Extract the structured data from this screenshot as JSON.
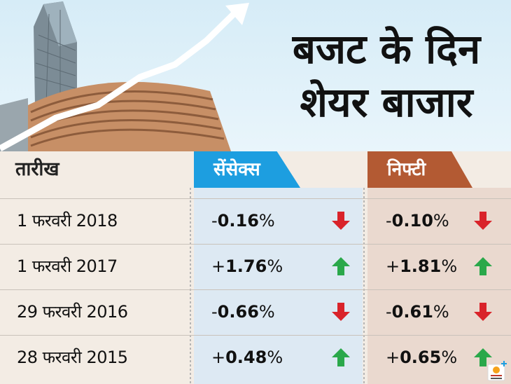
{
  "headline": {
    "line1": "बजट के दिन",
    "line2": "शेयर बाजार"
  },
  "table": {
    "date_header": "तारीख",
    "sensex_header": "सेंसेक्स",
    "nifty_header": "निफ्टी",
    "rows": [
      {
        "date": "1 फरवरी 2018",
        "sensex_sign": "-",
        "sensex_value": "0.16",
        "sensex_unit": "%",
        "sensex_direction": "down",
        "nifty_sign": "-",
        "nifty_value": "0.10",
        "nifty_unit": "%",
        "nifty_direction": "down"
      },
      {
        "date": "1 फरवरी 2017",
        "sensex_sign": "+",
        "sensex_value": "1.76",
        "sensex_unit": "%",
        "sensex_direction": "up",
        "nifty_sign": "+",
        "nifty_value": "1.81",
        "nifty_unit": "%",
        "nifty_direction": "up"
      },
      {
        "date": "29 फरवरी 2016",
        "sensex_sign": "-",
        "sensex_value": "0.66",
        "sensex_unit": "%",
        "sensex_direction": "down",
        "nifty_sign": "-",
        "nifty_value": "0.61",
        "nifty_unit": "%",
        "nifty_direction": "down"
      },
      {
        "date": "28 फरवरी 2015",
        "sensex_sign": "+",
        "sensex_value": "0.48",
        "sensex_unit": "%",
        "sensex_direction": "up",
        "nifty_sign": "+",
        "nifty_value": "0.65",
        "nifty_unit": "%",
        "nifty_direction": "up"
      }
    ]
  },
  "icons": {
    "up": "green-up-arrow-icon",
    "down": "red-down-arrow-icon",
    "building": "stock-exchange-building-icon",
    "rising_line": "rising-trend-arrow-icon",
    "brand": "publisher-logo-icon"
  },
  "colors": {
    "sensex_accent": "#1d9ee0",
    "nifty_accent": "#b35a33",
    "up": "#2aa84a",
    "down": "#d9232a",
    "sensex_bg": "#dde9f3",
    "nifty_bg": "#ead9cf"
  }
}
